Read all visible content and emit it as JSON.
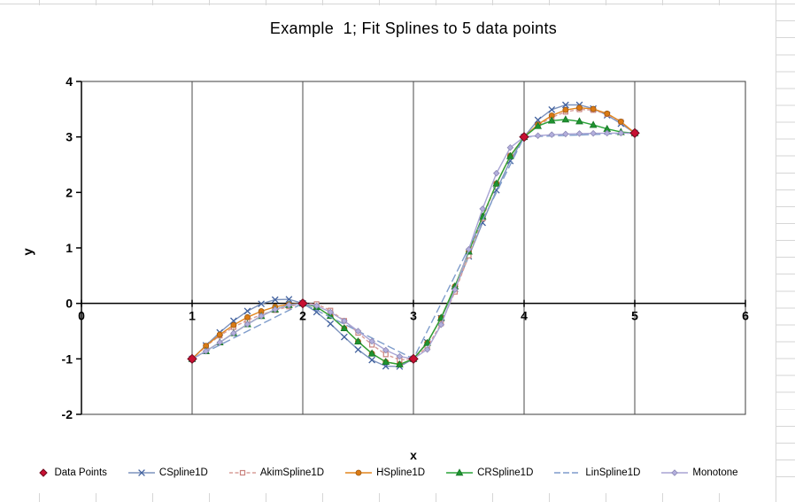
{
  "worksheet": {
    "grid_color": "#d6d6d6"
  },
  "chart": {
    "title": "Example  1; Fit Splines to 5 data points",
    "x_axis_title": "x",
    "y_axis_title": "y"
  },
  "chart_data": {
    "type": "line",
    "title": "Example  1; Fit Splines to 5 data points",
    "xlabel": "x",
    "ylabel": "y",
    "xlim": [
      0,
      6
    ],
    "ylim": [
      -2,
      4
    ],
    "x_ticks": [
      0,
      1,
      2,
      3,
      4,
      5,
      6
    ],
    "y_ticks": [
      -2,
      -1,
      0,
      1,
      2,
      3,
      4
    ],
    "grid": "vertical-major",
    "legend_position": "bottom",
    "knots": {
      "x": [
        1,
        2,
        3,
        4,
        5
      ],
      "y": [
        -1,
        0,
        -1,
        3,
        3.07
      ]
    },
    "sample_step": 0.125,
    "series": [
      {
        "name": "Data Points",
        "role": "points",
        "marker": "diamond",
        "color": "#c81032",
        "line": "none"
      },
      {
        "name": "CSpline1D",
        "role": "spline",
        "method": "natural-cubic",
        "marker": "x",
        "color": "#7d93bd",
        "marker_color": "#41619e",
        "line": "solid"
      },
      {
        "name": "AkimSpline1D",
        "role": "spline",
        "method": "akima",
        "marker": "square-open",
        "color": "#d89d99",
        "marker_color": "#c9827d",
        "line": "dash"
      },
      {
        "name": "HSpline1D",
        "role": "spline",
        "method": "hermite-fd",
        "marker": "circle",
        "color": "#e2861f",
        "marker_color": "#db7a14",
        "line": "solid"
      },
      {
        "name": "CRSpline1D",
        "role": "spline",
        "method": "catmull-rom",
        "marker": "triangle",
        "color": "#2aa339",
        "marker_color": "#1f9430",
        "line": "solid"
      },
      {
        "name": "LinSpline1D",
        "role": "spline",
        "method": "linear",
        "marker": "none",
        "color": "#7e9ccb",
        "line": "long-dash"
      },
      {
        "name": "Monotone",
        "role": "spline",
        "method": "monotone-cubic",
        "marker": "diamond-small",
        "color": "#a8a4d4",
        "marker_color": "#b3afdd",
        "line": "solid"
      }
    ]
  }
}
